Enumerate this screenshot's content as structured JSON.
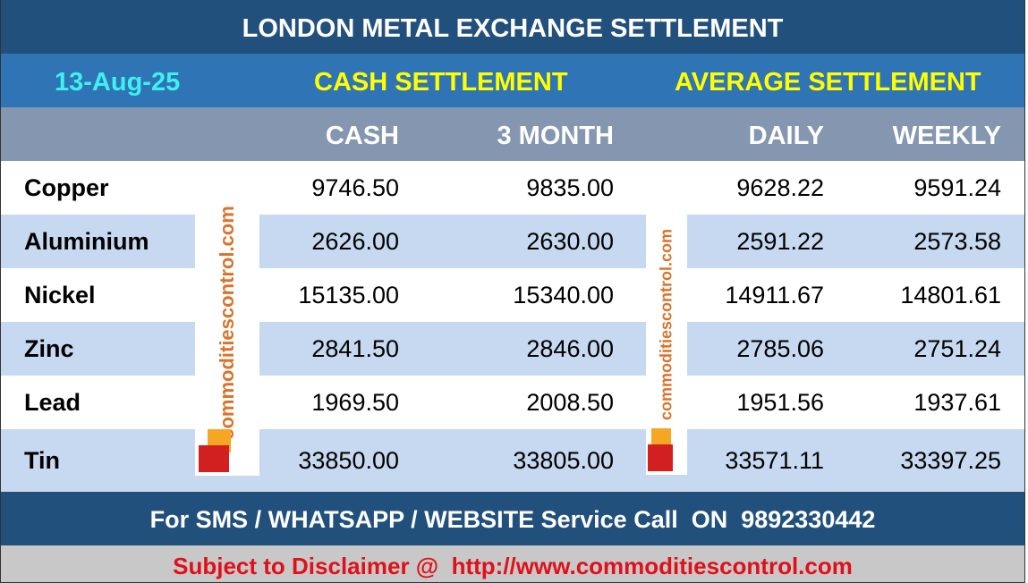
{
  "header": {
    "title": "LONDON METAL EXCHANGE SETTLEMENT"
  },
  "subheader": {
    "date": "13-Aug-25",
    "cash": "CASH SETTLEMENT",
    "average": "AVERAGE SETTLEMENT"
  },
  "table": {
    "columns": [
      "CASH",
      "3 MONTH",
      "DAILY",
      "WEEKLY"
    ],
    "rows": [
      [
        "Copper",
        "9746.50",
        "9835.00",
        "9628.22",
        "9591.24"
      ],
      [
        "Aluminium",
        "2626.00",
        "2630.00",
        "2591.22",
        "2573.58"
      ],
      [
        "Nickel",
        "15135.00",
        "15340.00",
        "14911.67",
        "14801.61"
      ],
      [
        "Zinc",
        "2841.50",
        "2846.00",
        "2785.06",
        "2751.24"
      ],
      [
        "Lead",
        "1969.50",
        "2008.50",
        "1951.56",
        "1937.61"
      ],
      [
        "Tin",
        "33850.00",
        "33805.00",
        "33571.11",
        "33397.25"
      ]
    ]
  },
  "watermark": "commoditiescontrol.com",
  "footer": {
    "service": "For SMS / WHATSAPP / WEBSITE Service Call  ON  9892330442",
    "disclaimer": "Subject to Disclaimer @  http://www.commoditiescontrol.com"
  }
}
